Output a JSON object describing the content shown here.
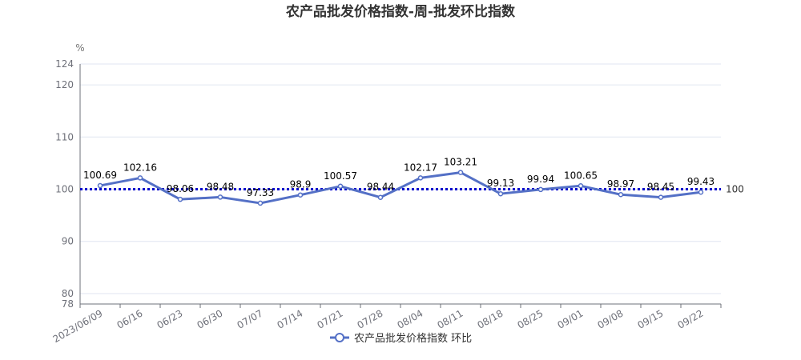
{
  "chart_data": {
    "type": "line",
    "title": "农产品批发价格指数-周-批发环比指数",
    "y_unit": "%",
    "categories": [
      "2023/06/09",
      "06/16",
      "06/23",
      "06/30",
      "07/07",
      "07/14",
      "07/21",
      "07/28",
      "08/04",
      "08/11",
      "08/18",
      "08/25",
      "09/01",
      "09/08",
      "09/15",
      "09/22"
    ],
    "series": [
      {
        "name": "农产品批发价格指数 环比",
        "values": [
          100.69,
          102.16,
          98.06,
          98.48,
          97.33,
          98.9,
          100.57,
          98.44,
          102.17,
          103.21,
          99.13,
          99.94,
          100.65,
          98.97,
          98.45,
          99.43
        ],
        "color": "#5470c6"
      }
    ],
    "ylim": [
      78,
      124
    ],
    "yticks": [
      78,
      80,
      90,
      100,
      110,
      120,
      124
    ],
    "reference_line": {
      "value": 100,
      "label": "100",
      "color": "#0000cc"
    },
    "grid": true,
    "legend_position": "bottom-center"
  }
}
